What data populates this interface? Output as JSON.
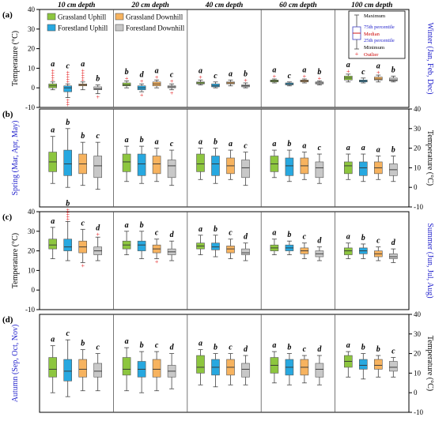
{
  "chart_data": {
    "type": "box",
    "groups": [
      "Grassland Uphill",
      "Forestland Uphill",
      "Grassland Downhill",
      "Forestland Downhill"
    ],
    "colors": {
      "Grassland Uphill": "#8DC63F",
      "Forestland Uphill": "#27A8E0",
      "Grassland Downhill": "#F7B35F",
      "Forestland Downhill": "#C8C8C8"
    },
    "depths": [
      "10 cm depth",
      "20 cm depth",
      "40 cm depth",
      "60 cm depth",
      "100 cm depth"
    ],
    "y_axis_label": "Temperature (°C)",
    "ylim": [
      -10,
      40
    ],
    "yticks": [
      -10,
      0,
      10,
      20,
      30,
      40
    ],
    "legend_entries": [
      "Grassland Uphill",
      "Grassland Downhill",
      "Forestland Uphill",
      "Forestland Downhill"
    ],
    "key_labels": {
      "maximum": "Maximum",
      "p75": "75th percentile",
      "median": "Median",
      "p25": "25th percentile",
      "minimum": "Minimum",
      "outlier": "Outlier"
    },
    "panels": [
      {
        "label": "(a)",
        "season": "Winter (Jan, Feb, Dec)",
        "boxes": [
          [
            {
              "min": -1,
              "q1": 0,
              "median": 1,
              "q3": 2,
              "max": 3,
              "letter": "a",
              "outliers": "high-dense"
            },
            {
              "min": -5,
              "q1": -2,
              "median": 0,
              "q3": 1,
              "max": 2,
              "letter": "c",
              "outliers": "both-dense"
            },
            {
              "min": -1,
              "q1": 1,
              "median": 1.5,
              "q3": 2,
              "max": 3,
              "letter": "a",
              "outliers": "high-dense"
            },
            {
              "min": -3,
              "q1": -1,
              "median": -0.5,
              "q3": 0.5,
              "max": 1.5,
              "letter": "b",
              "outliers": "low"
            }
          ],
          [
            {
              "min": 0,
              "q1": 1,
              "median": 1.5,
              "q3": 2.5,
              "max": 3.5,
              "letter": "b",
              "outliers": "high"
            },
            {
              "min": -2,
              "q1": -1,
              "median": 0,
              "q3": 1,
              "max": 2,
              "letter": "d",
              "outliers": "both"
            },
            {
              "min": 0,
              "q1": 1,
              "median": 2,
              "q3": 3,
              "max": 4,
              "letter": "a",
              "outliers": "high"
            },
            {
              "min": -1,
              "q1": 0,
              "median": 0.5,
              "q3": 1,
              "max": 2,
              "letter": "c",
              "outliers": "both"
            }
          ],
          [
            {
              "min": 1.5,
              "q1": 2,
              "median": 2.5,
              "q3": 3,
              "max": 4,
              "letter": "a",
              "outliers": "high"
            },
            {
              "min": 0,
              "q1": 0.5,
              "median": 1,
              "q3": 2,
              "max": 3,
              "letter": "c",
              "outliers": "none"
            },
            {
              "min": 1,
              "q1": 2,
              "median": 2.5,
              "q3": 3,
              "max": 4,
              "letter": "a",
              "outliers": "none"
            },
            {
              "min": 0,
              "q1": 0.5,
              "median": 1,
              "q3": 1.5,
              "max": 2.5,
              "letter": "b",
              "outliers": "high"
            }
          ],
          [
            {
              "min": 2.5,
              "q1": 3,
              "median": 3.5,
              "q3": 4,
              "max": 4.5,
              "letter": "a",
              "outliers": "high"
            },
            {
              "min": 1,
              "q1": 1.5,
              "median": 2,
              "q3": 2.5,
              "max": 3,
              "letter": "c",
              "outliers": "none"
            },
            {
              "min": 2.5,
              "q1": 3,
              "median": 3.5,
              "q3": 4,
              "max": 4.5,
              "letter": "a",
              "outliers": "high"
            },
            {
              "min": 1.5,
              "q1": 2,
              "median": 2.5,
              "q3": 3,
              "max": 3.5,
              "letter": "b",
              "outliers": "high"
            }
          ],
          [
            {
              "min": 3,
              "q1": 4,
              "median": 5,
              "q3": 6,
              "max": 7,
              "letter": "a",
              "outliers": "high"
            },
            {
              "min": 2.5,
              "q1": 3,
              "median": 3.5,
              "q3": 4,
              "max": 5,
              "letter": "c",
              "outliers": "none"
            },
            {
              "min": 3,
              "q1": 4,
              "median": 4.5,
              "q3": 5.5,
              "max": 6.5,
              "letter": "a",
              "outliers": "high"
            },
            {
              "min": 3,
              "q1": 3.5,
              "median": 4,
              "q3": 5,
              "max": 6,
              "letter": "b",
              "outliers": "none"
            }
          ]
        ]
      },
      {
        "label": "(b)",
        "season": "Spring (Mar, Apr, May)",
        "boxes": [
          [
            {
              "min": 2,
              "q1": 8,
              "median": 13,
              "q3": 18,
              "max": 26,
              "letter": "a",
              "outliers": "none"
            },
            {
              "min": 0,
              "q1": 6,
              "median": 12,
              "q3": 19,
              "max": 30,
              "letter": "b",
              "outliers": "none"
            },
            {
              "min": 1,
              "q1": 7,
              "median": 12,
              "q3": 17,
              "max": 23,
              "letter": "b",
              "outliers": "none"
            },
            {
              "min": -1,
              "q1": 5,
              "median": 11,
              "q3": 16,
              "max": 23,
              "letter": "c",
              "outliers": "none"
            }
          ],
          [
            {
              "min": 3,
              "q1": 8,
              "median": 13,
              "q3": 17,
              "max": 21,
              "letter": "a",
              "outliers": "none"
            },
            {
              "min": 2,
              "q1": 6,
              "median": 12,
              "q3": 17,
              "max": 21,
              "letter": "b",
              "outliers": "none"
            },
            {
              "min": 3,
              "q1": 7,
              "median": 12,
              "q3": 16,
              "max": 20,
              "letter": "a",
              "outliers": "none"
            },
            {
              "min": 1,
              "q1": 5,
              "median": 11,
              "q3": 14,
              "max": 19,
              "letter": "c",
              "outliers": "none"
            }
          ],
          [
            {
              "min": 4,
              "q1": 8,
              "median": 12,
              "q3": 17,
              "max": 20,
              "letter": "a",
              "outliers": "none"
            },
            {
              "min": 2,
              "q1": 6,
              "median": 12,
              "q3": 16,
              "max": 20,
              "letter": "b",
              "outliers": "none"
            },
            {
              "min": 4,
              "q1": 7,
              "median": 11,
              "q3": 15,
              "max": 19,
              "letter": "a",
              "outliers": "none"
            },
            {
              "min": 1,
              "q1": 5,
              "median": 10,
              "q3": 14,
              "max": 18,
              "letter": "c",
              "outliers": "none"
            }
          ],
          [
            {
              "min": 5,
              "q1": 8,
              "median": 12,
              "q3": 16,
              "max": 19,
              "letter": "a",
              "outliers": "none"
            },
            {
              "min": 3,
              "q1": 6,
              "median": 11,
              "q3": 15,
              "max": 19,
              "letter": "b",
              "outliers": "none"
            },
            {
              "min": 4,
              "q1": 7,
              "median": 11,
              "q3": 15,
              "max": 18,
              "letter": "a",
              "outliers": "none"
            },
            {
              "min": 2,
              "q1": 5,
              "median": 10,
              "q3": 13,
              "max": 17,
              "letter": "c",
              "outliers": "none"
            }
          ],
          [
            {
              "min": 4,
              "q1": 7,
              "median": 11,
              "q3": 13,
              "max": 17,
              "letter": "a",
              "outliers": "none"
            },
            {
              "min": 3,
              "q1": 6,
              "median": 10,
              "q3": 13,
              "max": 17,
              "letter": "a",
              "outliers": "none"
            },
            {
              "min": 4,
              "q1": 7,
              "median": 10,
              "q3": 13,
              "max": 16,
              "letter": "a",
              "outliers": "none"
            },
            {
              "min": 3,
              "q1": 6,
              "median": 9,
              "q3": 12,
              "max": 16,
              "letter": "b",
              "outliers": "none"
            }
          ]
        ]
      },
      {
        "label": "(c)",
        "season": "Summer (Jun, Jul, Aug)",
        "boxes": [
          [
            {
              "min": 16,
              "q1": 21,
              "median": 23,
              "q3": 26,
              "max": 32,
              "letter": "a",
              "outliers": "none"
            },
            {
              "min": 15,
              "q1": 20,
              "median": 22,
              "q3": 26,
              "max": 35,
              "letter": "b",
              "outliers": "high-dense"
            },
            {
              "min": 14,
              "q1": 19,
              "median": 22,
              "q3": 25,
              "max": 31,
              "letter": "c",
              "outliers": "low"
            },
            {
              "min": 15,
              "q1": 18,
              "median": 20,
              "q3": 22,
              "max": 27,
              "letter": "d",
              "outliers": "high"
            }
          ],
          [
            {
              "min": 18,
              "q1": 21,
              "median": 23,
              "q3": 25,
              "max": 30,
              "letter": "a",
              "outliers": "none"
            },
            {
              "min": 16,
              "q1": 20,
              "median": 23,
              "q3": 25,
              "max": 30,
              "letter": "b",
              "outliers": "none"
            },
            {
              "min": 16,
              "q1": 19,
              "median": 21,
              "q3": 23,
              "max": 26,
              "letter": "c",
              "outliers": "low"
            },
            {
              "min": 15,
              "q1": 18,
              "median": 19.5,
              "q3": 21,
              "max": 25,
              "letter": "d",
              "outliers": "none"
            }
          ],
          [
            {
              "min": 18,
              "q1": 21,
              "median": 22.5,
              "q3": 24,
              "max": 28,
              "letter": "a",
              "outliers": "none"
            },
            {
              "min": 17,
              "q1": 20.5,
              "median": 22,
              "q3": 24,
              "max": 28,
              "letter": "b",
              "outliers": "none"
            },
            {
              "min": 16,
              "q1": 19,
              "median": 21,
              "q3": 22.5,
              "max": 26,
              "letter": "c",
              "outliers": "none"
            },
            {
              "min": 15,
              "q1": 18,
              "median": 19,
              "q3": 21,
              "max": 24,
              "letter": "d",
              "outliers": "none"
            }
          ],
          [
            {
              "min": 18,
              "q1": 20,
              "median": 21.5,
              "q3": 23,
              "max": 26,
              "letter": "a",
              "outliers": "none"
            },
            {
              "min": 18,
              "q1": 20,
              "median": 21.5,
              "q3": 23,
              "max": 25,
              "letter": "b",
              "outliers": "none"
            },
            {
              "min": 16,
              "q1": 18.5,
              "median": 20,
              "q3": 21.5,
              "max": 24,
              "letter": "c",
              "outliers": "none"
            },
            {
              "min": 15,
              "q1": 17,
              "median": 18.5,
              "q3": 20,
              "max": 22,
              "letter": "d",
              "outliers": "none"
            }
          ],
          [
            {
              "min": 16,
              "q1": 18,
              "median": 20,
              "q3": 21.5,
              "max": 24,
              "letter": "a",
              "outliers": "none"
            },
            {
              "min": 16,
              "q1": 18.5,
              "median": 20,
              "q3": 21.5,
              "max": 23.5,
              "letter": "b",
              "outliers": "none"
            },
            {
              "min": 15,
              "q1": 17,
              "median": 18.5,
              "q3": 20,
              "max": 22,
              "letter": "c",
              "outliers": "none"
            },
            {
              "min": 14,
              "q1": 16,
              "median": 17,
              "q3": 18.5,
              "max": 21,
              "letter": "d",
              "outliers": "none"
            }
          ]
        ]
      },
      {
        "label": "(d)",
        "season": "Autumn (Sep, Oct, Nov)",
        "boxes": [
          [
            {
              "min": 0,
              "q1": 8,
              "median": 12,
              "q3": 18,
              "max": 24,
              "letter": "a",
              "outliers": "none"
            },
            {
              "min": -2,
              "q1": 6,
              "median": 11,
              "q3": 17,
              "max": 27,
              "letter": "c",
              "outliers": "none"
            },
            {
              "min": 1,
              "q1": 8,
              "median": 12,
              "q3": 17,
              "max": 22,
              "letter": "b",
              "outliers": "none"
            },
            {
              "min": 1,
              "q1": 8,
              "median": 11,
              "q3": 15,
              "max": 20,
              "letter": "c",
              "outliers": "none"
            }
          ],
          [
            {
              "min": 1,
              "q1": 9,
              "median": 12,
              "q3": 18,
              "max": 23,
              "letter": "a",
              "outliers": "none"
            },
            {
              "min": 0,
              "q1": 8,
              "median": 12,
              "q3": 16,
              "max": 21,
              "letter": "b",
              "outliers": "none"
            },
            {
              "min": 1,
              "q1": 8,
              "median": 12,
              "q3": 17,
              "max": 21,
              "letter": "c",
              "outliers": "none"
            },
            {
              "min": 2,
              "q1": 8,
              "median": 11,
              "q3": 14,
              "max": 20,
              "letter": "d",
              "outliers": "none"
            }
          ],
          [
            {
              "min": 4,
              "q1": 10,
              "median": 13,
              "q3": 19,
              "max": 22,
              "letter": "a",
              "outliers": "none"
            },
            {
              "min": 3,
              "q1": 9,
              "median": 13,
              "q3": 17,
              "max": 20,
              "letter": "b",
              "outliers": "none"
            },
            {
              "min": 4,
              "q1": 9,
              "median": 13,
              "q3": 17,
              "max": 20,
              "letter": "c",
              "outliers": "none"
            },
            {
              "min": 4,
              "q1": 8,
              "median": 12,
              "q3": 15,
              "max": 19,
              "letter": "d",
              "outliers": "none"
            }
          ],
          [
            {
              "min": 5,
              "q1": 10,
              "median": 14,
              "q3": 18,
              "max": 21,
              "letter": "a",
              "outliers": "none"
            },
            {
              "min": 4,
              "q1": 9,
              "median": 13,
              "q3": 17,
              "max": 20,
              "letter": "b",
              "outliers": "none"
            },
            {
              "min": 5,
              "q1": 9,
              "median": 13,
              "q3": 17,
              "max": 19,
              "letter": "c",
              "outliers": "none"
            },
            {
              "min": 4,
              "q1": 8,
              "median": 12,
              "q3": 15,
              "max": 19,
              "letter": "d",
              "outliers": "none"
            }
          ],
          [
            {
              "min": 8,
              "q1": 13,
              "median": 16,
              "q3": 19,
              "max": 21,
              "letter": "a",
              "outliers": "none"
            },
            {
              "min": 7,
              "q1": 12,
              "median": 14,
              "q3": 17,
              "max": 20,
              "letter": "b",
              "outliers": "none"
            },
            {
              "min": 8,
              "q1": 12,
              "median": 14,
              "q3": 17,
              "max": 19,
              "letter": "b",
              "outliers": "none"
            },
            {
              "min": 8,
              "q1": 11,
              "median": 13,
              "q3": 16,
              "max": 18,
              "letter": "c",
              "outliers": "none"
            }
          ]
        ]
      }
    ]
  }
}
